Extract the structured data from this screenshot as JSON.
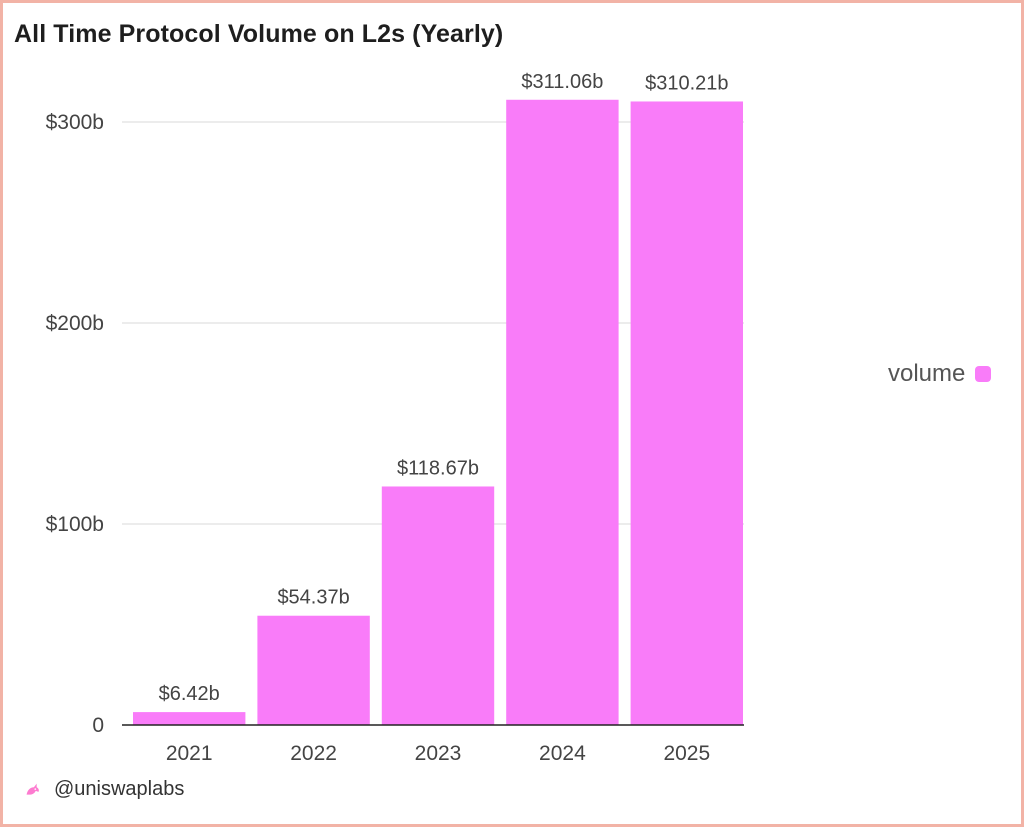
{
  "colors": {
    "bar": "#f97cf9",
    "grid": "#e6e6e6",
    "axis": "#222222"
  },
  "chart_data": {
    "type": "bar",
    "title": "All Time Protocol Volume on L2s (Yearly)",
    "categories": [
      "2021",
      "2022",
      "2023",
      "2024",
      "2025"
    ],
    "series": [
      {
        "name": "volume",
        "values": [
          6.42,
          54.37,
          118.67,
          311.06,
          310.21
        ],
        "labels": [
          "$6.42b",
          "$54.37b",
          "$118.67b",
          "$311.06b",
          "$310.21b"
        ]
      }
    ],
    "yticks": [
      0,
      100,
      200,
      300
    ],
    "ytick_labels": [
      "0",
      "$100b",
      "$200b",
      "$300b"
    ],
    "ylim": [
      0,
      300
    ],
    "xlabel": "",
    "ylabel": "",
    "legend": "right",
    "grid": true
  },
  "footer": {
    "handle": "@uniswaplabs",
    "icon": "unicorn-icon"
  }
}
